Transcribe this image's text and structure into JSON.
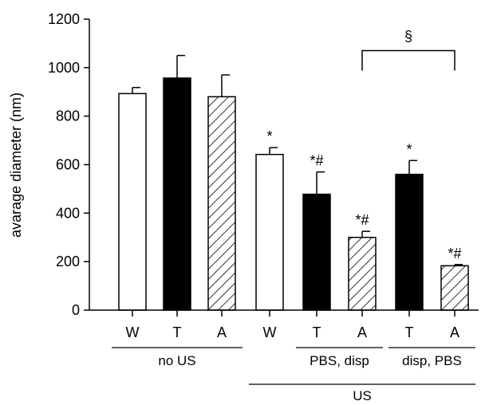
{
  "chart_data": {
    "type": "bar",
    "ylabel": "avarage diameter (nm)",
    "ylim": [
      0,
      1200
    ],
    "yticks": [
      0,
      200,
      400,
      600,
      800,
      1000,
      1200
    ],
    "bars": [
      {
        "label": "W",
        "value": 893,
        "error": 25,
        "fill": "white",
        "sig": ""
      },
      {
        "label": "T",
        "value": 957,
        "error": 93,
        "fill": "black",
        "sig": ""
      },
      {
        "label": "A",
        "value": 880,
        "error": 90,
        "fill": "hatch",
        "sig": ""
      },
      {
        "label": "W",
        "value": 642,
        "error": 28,
        "fill": "white",
        "sig": "*"
      },
      {
        "label": "T",
        "value": 478,
        "error": 92,
        "fill": "black",
        "sig": "*#"
      },
      {
        "label": "A",
        "value": 300,
        "error": 25,
        "fill": "hatch",
        "sig": "*#"
      },
      {
        "label": "T",
        "value": 560,
        "error": 57,
        "fill": "black",
        "sig": "*"
      },
      {
        "label": "A",
        "value": 183,
        "error": 5,
        "fill": "hatch",
        "sig": "*#"
      }
    ],
    "groups": [
      {
        "label": "no US",
        "from": 0,
        "to": 2,
        "level": 1
      },
      {
        "label": "PBS, disp",
        "from": 4,
        "to": 5,
        "level": 1
      },
      {
        "label": "disp, PBS",
        "from": 6,
        "to": 7,
        "level": 1
      },
      {
        "label": "US",
        "from": 3,
        "to": 7,
        "level": 2
      }
    ],
    "bracket": {
      "label": "§",
      "from": 5,
      "to": 7,
      "value": 1070
    }
  }
}
